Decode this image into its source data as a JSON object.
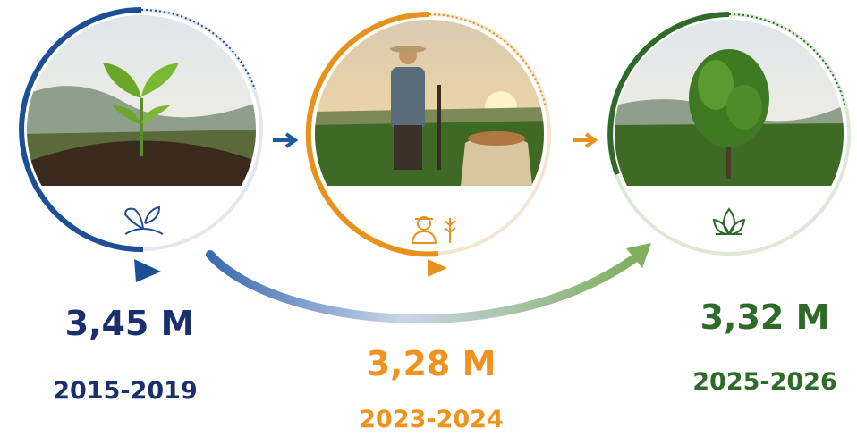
{
  "stages": [
    {
      "value": "3,45 M",
      "period": "2015-2019"
    },
    {
      "value": "3,28 M",
      "period": "2023-2024"
    },
    {
      "value": "3,32 M",
      "period": "2025-2026"
    }
  ]
}
